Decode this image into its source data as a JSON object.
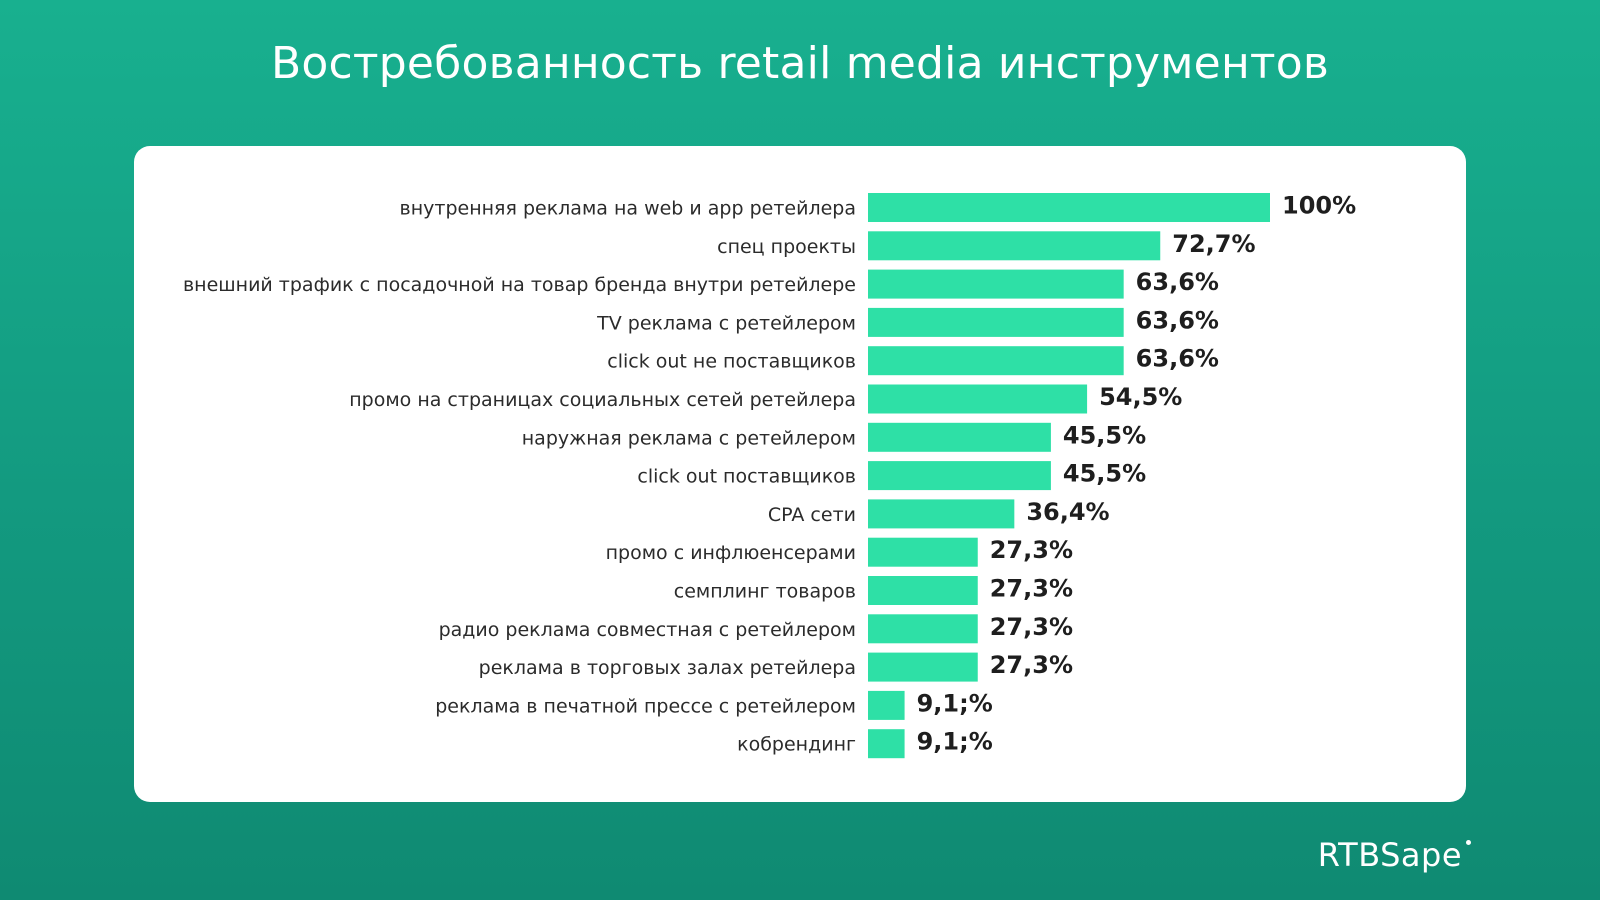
{
  "title": "Востребованность retail media инструментов",
  "brand": "RTBSape",
  "colors": {
    "bar": "#2ee0a6",
    "background": "#14a386",
    "card": "#ffffff"
  },
  "chart_data": {
    "type": "bar",
    "orientation": "horizontal",
    "categories": [
      "внутренняя реклама на web и app ретейлера",
      "спец проекты",
      "внешний трафик с посадочной на товар бренда внутри ретейлере",
      "TV реклама с ретейлером",
      "click out не поставщиков",
      "промо на страницах социальных сетей ретейлера",
      "наружная реклама с ретейлером",
      "click out поставщиков",
      "CPA сети",
      "промо с инфлюенсерами",
      "семплинг товаров",
      "радио реклама совместная с ретейлером",
      "реклама в торговых залах ретейлера",
      "реклама в печатной прессе с ретейлером",
      "кобрендинг"
    ],
    "values": [
      100,
      72.7,
      63.6,
      63.6,
      63.6,
      54.5,
      45.5,
      45.5,
      36.4,
      27.3,
      27.3,
      27.3,
      27.3,
      9.1,
      9.1
    ],
    "value_labels": [
      "100%",
      "72,7%",
      "63,6%",
      "63,6%",
      "63,6%",
      "54,5%",
      "45,5%",
      "45,5%",
      "36,4%",
      "27,3%",
      "27,3%",
      "27,3%",
      "27,3%",
      "9,1;%",
      "9,1;%"
    ],
    "xlim": [
      0,
      100
    ],
    "grid": false,
    "legend": "none"
  }
}
